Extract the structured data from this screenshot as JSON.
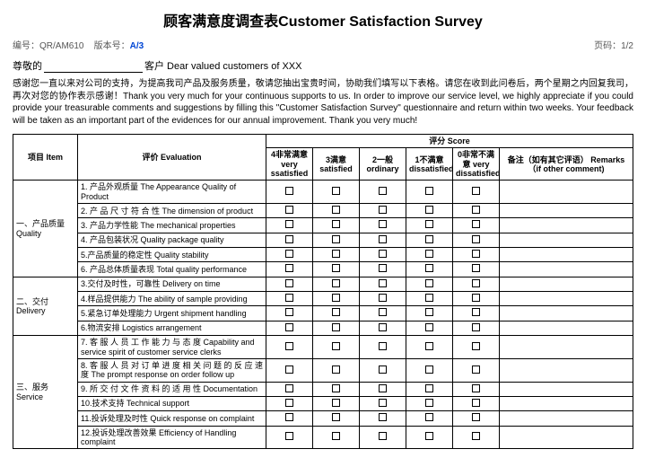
{
  "title": "顾客满意度调查表Customer Satisfaction Survey",
  "meta": {
    "doc_no_label": "编号：",
    "doc_no": "QR/AM610",
    "ver_label": "版本号：",
    "ver": "A/3",
    "page_label": "页码：",
    "page": "1/2"
  },
  "greet": {
    "prefix": "尊敬的",
    "suffix": "客户  Dear valued customers of XXX"
  },
  "intro": "感谢您一直以来对公司的支持，为提高我司产品及服务质量，敬请您抽出宝贵时间，协助我们填写以下表格。请您在收到此问卷后，两个星期之内回复我司，再次对您的协作表示感谢！Thank you very much for your continuous supports to us. In order to improve our service level, we highly appreciate if you could provide your treasurable comments and suggestions by filling this \"Customer Satisfaction Survey\" questionnaire and return within two weeks. Your feedback will be taken as an important part of the evidences for our annual improvement. Thank you very much!",
  "headers": {
    "item": "项目 Item",
    "eval": "评价 Evaluation",
    "score": "评分 Score",
    "s4": "4非常满意 very ssatisfied",
    "s3": "3满意 satisfied",
    "s2": "2一般 ordinary",
    "s1": "1不满意 dissatisfied",
    "s0": "0非常不满意 very dissatisfied",
    "remarks": "备注（如有其它评语） Remarks（if other comment)"
  },
  "categories": [
    {
      "label": "一、产品质量 Quality",
      "rows": [
        "1. 产品外观质量  The Appearance Quality of Product",
        "2. 产 品 尺 寸 符 合 性   The  dimension  of  product",
        "3. 产品力学性能 The mechanical properties",
        "4. 产品包装状况 Quality package quality",
        "5.产品质量的稳定性 Quality stability",
        "6. 产品总体质量表现 Total quality performance"
      ]
    },
    {
      "label": "二、交付 Delivery",
      "rows": [
        "3.交付及时性，可靠性  Delivery on time",
        "4.样品提供能力 The ability of sample providing",
        "5.紧急订单处理能力 Urgent shipment handling",
        "6.物流安排 Logistics arrangement"
      ]
    },
    {
      "label": "三、服务 Service",
      "rows": [
        "7. 客 服 人 员 工 作 能 力 与 态 度 Capability and service spirit of customer service clerks",
        "8. 客 服 人 员 对 订 单 进 度 相 关 问 题 的 反 应 速 度 The prompt response on order follow up",
        "9. 所 交 付 文 件 资 料 的 适 用 性   Documentation",
        "10.技术支持 Technical support",
        "11.投诉处理及时性 Quick response on complaint",
        "12.投诉处理改善效果 Efficiency of Handling complaint"
      ]
    }
  ]
}
